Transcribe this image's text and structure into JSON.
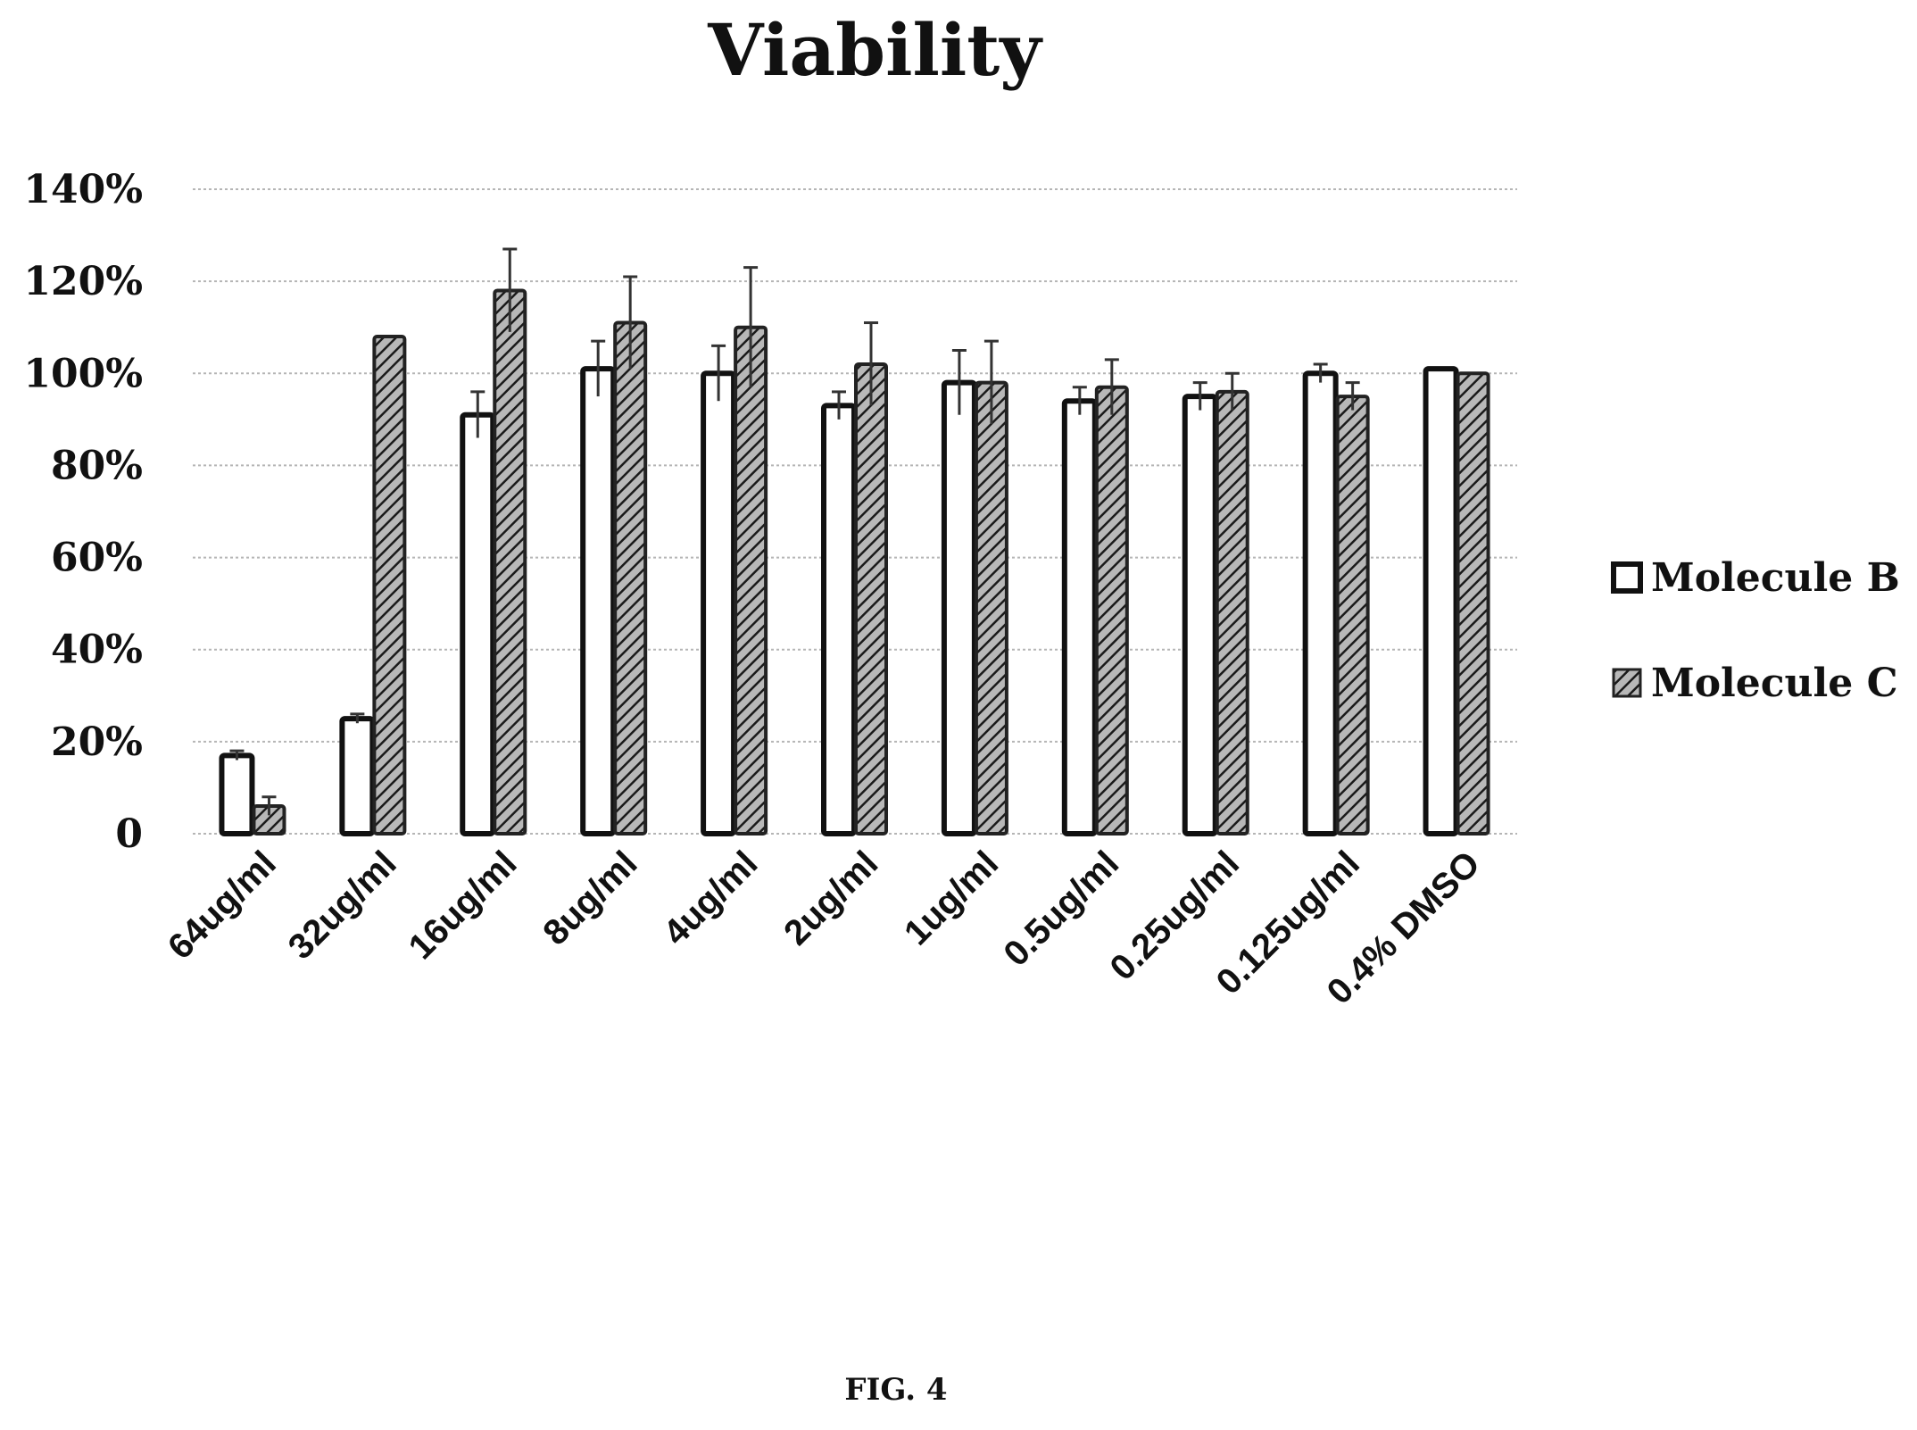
{
  "caption": "FIG. 4",
  "chart_data": {
    "type": "bar",
    "title": "Viability",
    "xlabel": "",
    "ylabel": "",
    "ylim": [
      0,
      140
    ],
    "ytick_values": [
      0,
      20,
      40,
      60,
      80,
      100,
      120,
      140
    ],
    "ytick_labels": [
      "0",
      "20%",
      "40%",
      "60%",
      "80%",
      "100%",
      "120%",
      "140%"
    ],
    "grid": true,
    "legend_position": "right",
    "categories": [
      "64ug/ml",
      "32ug/ml",
      "16ug/ml",
      "8ug/ml",
      "4ug/ml",
      "2ug/ml",
      "1ug/ml",
      "0.5ug/ml",
      "0.25ug/ml",
      "0.125ug/ml",
      "0.4% DMSO"
    ],
    "series": [
      {
        "name": "Molecule B",
        "pattern": "open",
        "values": [
          17,
          25,
          91,
          101,
          100,
          93,
          98,
          94,
          95,
          100,
          101
        ],
        "errors": [
          1,
          1,
          5,
          6,
          6,
          3,
          7,
          3,
          3,
          2,
          0
        ]
      },
      {
        "name": "Molecule C",
        "pattern": "hatched",
        "values": [
          6,
          108,
          118,
          111,
          110,
          102,
          98,
          97,
          96,
          95,
          100
        ],
        "errors": [
          2,
          0,
          9,
          10,
          13,
          9,
          9,
          6,
          4,
          3,
          0
        ]
      }
    ]
  }
}
